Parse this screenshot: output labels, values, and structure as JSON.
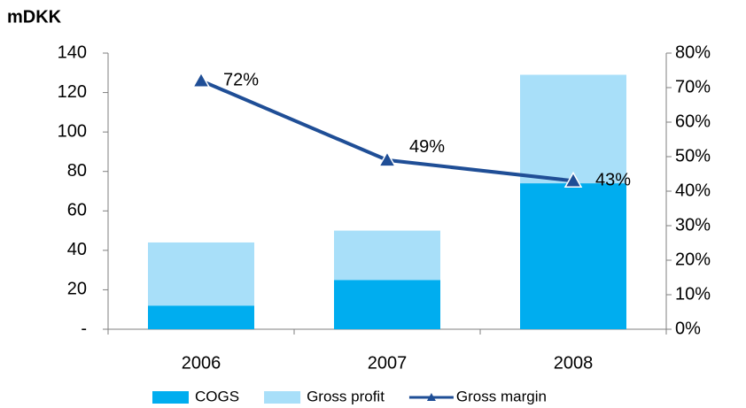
{
  "chart_data": {
    "type": "bar",
    "title": "mDKK",
    "categories": [
      "2006",
      "2007",
      "2008"
    ],
    "series": [
      {
        "name": "COGS",
        "color": "#00adef",
        "values": [
          12,
          25,
          74
        ]
      },
      {
        "name": "Gross profit",
        "color": "#a8dff9",
        "values": [
          32,
          25,
          55
        ]
      },
      {
        "name": "Gross margin",
        "color": "#1f4e96",
        "type": "line",
        "axis": "y2",
        "values": [
          72,
          49,
          43
        ],
        "value_labels": [
          "72%",
          "49%",
          "43%"
        ]
      }
    ],
    "ylim": [
      0,
      140
    ],
    "yticks": [
      {
        "value": 0,
        "label": "-"
      },
      20,
      40,
      60,
      80,
      100,
      120,
      140
    ],
    "y2lim": [
      0,
      80
    ],
    "y2ticks": [
      {
        "value": 0,
        "label": "0%"
      },
      {
        "value": 10,
        "label": "10%"
      },
      {
        "value": 20,
        "label": "20%"
      },
      {
        "value": 30,
        "label": "30%"
      },
      {
        "value": 40,
        "label": "40%"
      },
      {
        "value": 50,
        "label": "50%"
      },
      {
        "value": 60,
        "label": "60%"
      },
      {
        "value": 70,
        "label": "70%"
      },
      {
        "value": 80,
        "label": "80%"
      }
    ],
    "legend": "bottom"
  }
}
